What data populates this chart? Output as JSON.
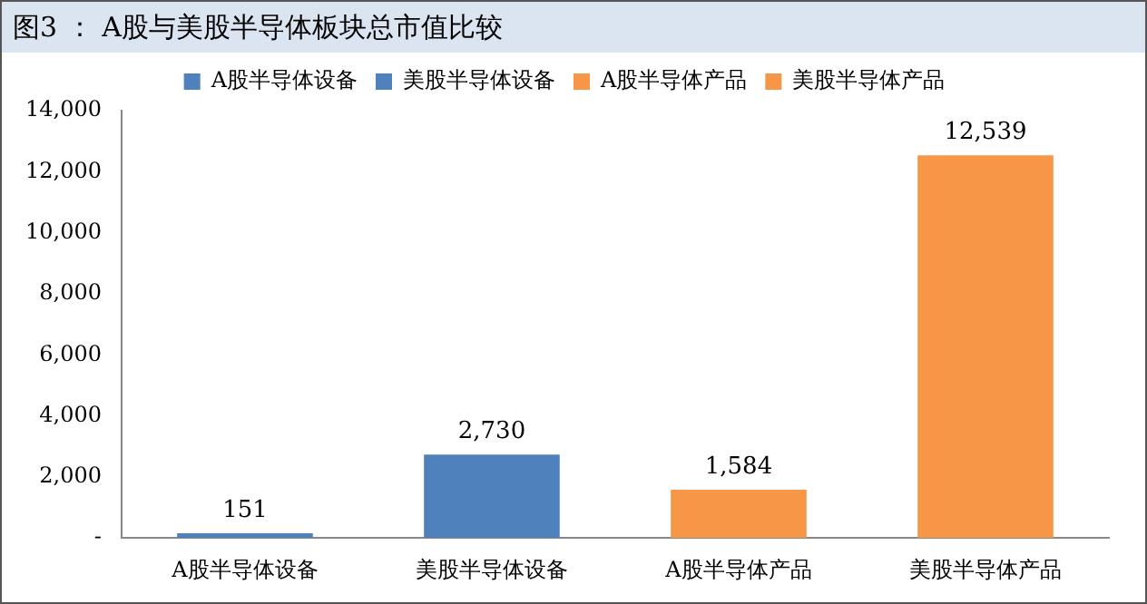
{
  "chart_data": {
    "type": "bar",
    "title": "图3 ： A股与美股半导体板块总市值比较",
    "categories": [
      "A股半导体设备",
      "美股半导体设备",
      "A股半导体产品",
      "美股半导体产品"
    ],
    "series": [
      {
        "name": "A股半导体设备",
        "color": "#4f81bd",
        "values": [
          151,
          null,
          null,
          null
        ],
        "value_labels": [
          "151",
          null,
          null,
          null
        ]
      },
      {
        "name": "美股半导体设备",
        "color": "#4f81bd",
        "values": [
          null,
          2730,
          null,
          null
        ],
        "value_labels": [
          null,
          "2,730",
          null,
          null
        ]
      },
      {
        "name": "A股半导体产品",
        "color": "#f79646",
        "values": [
          null,
          null,
          1584,
          null
        ],
        "value_labels": [
          null,
          null,
          "1,584",
          null
        ]
      },
      {
        "name": "美股半导体产品",
        "color": "#f79646",
        "values": [
          null,
          null,
          null,
          12539
        ],
        "value_labels": [
          null,
          null,
          null,
          "12,539"
        ]
      }
    ],
    "ylim": [
      0,
      14000
    ],
    "yticks": [
      {
        "value": 0,
        "label": "-"
      },
      {
        "value": 2000,
        "label": "2,000"
      },
      {
        "value": 4000,
        "label": "4,000"
      },
      {
        "value": 6000,
        "label": "6,000"
      },
      {
        "value": 8000,
        "label": "8,000"
      },
      {
        "value": 10000,
        "label": "10,000"
      },
      {
        "value": 12000,
        "label": "12,000"
      },
      {
        "value": 14000,
        "label": "14,000"
      }
    ],
    "grid": false,
    "legend": "top"
  }
}
